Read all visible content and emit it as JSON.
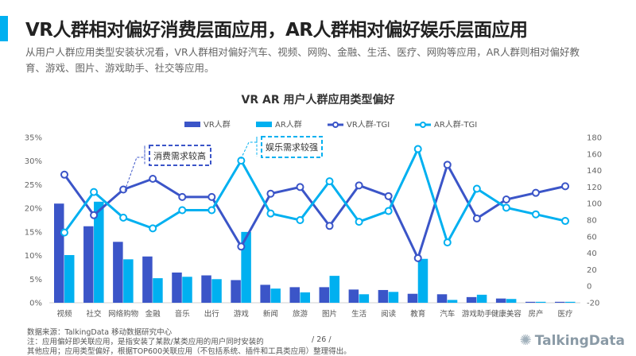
{
  "header": {
    "title": "VR人群相对偏好消费层面应用，AR人群相对偏好娱乐层面应用",
    "subtitle": "从用户人群应用类型安装状况看，VR人群相对偏好汽车、视频、网购、金融、生活、医疗、网购等应用，AR人群则相对偏好教育、游戏、图片、游戏助手、社交等应用。"
  },
  "colors": {
    "vr": "#3b55c8",
    "ar": "#00b0f0"
  },
  "chart_data": {
    "type": "bar+line",
    "title": "VR  AR  用户人群应用类型偏好",
    "categories": [
      "视频",
      "社交",
      "网络购物",
      "金融",
      "音乐",
      "出行",
      "游戏",
      "新闻",
      "旅游",
      "图片",
      "生活",
      "阅读",
      "教育",
      "汽车",
      "游戏助手",
      "健康美容",
      "房产",
      "医疗"
    ],
    "left_axis": {
      "ylim": [
        0,
        35
      ],
      "ticks": [
        "0%",
        "5%",
        "10%",
        "15%",
        "20%",
        "25%",
        "30%",
        "35%"
      ]
    },
    "right_axis": {
      "ylim": [
        -20,
        180
      ],
      "ticks": [
        "-20",
        "0",
        "20",
        "40",
        "60",
        "80",
        "100",
        "120",
        "140",
        "160",
        "180"
      ]
    },
    "legend_position": "top",
    "grid": false,
    "series": [
      {
        "name": "VR人群",
        "type": "bar",
        "axis": "left",
        "values": [
          21.0,
          16.2,
          12.9,
          9.8,
          6.4,
          5.8,
          4.8,
          3.8,
          3.3,
          3.3,
          2.8,
          2.7,
          1.9,
          1.8,
          1.2,
          0.9,
          0.2,
          0.2
        ]
      },
      {
        "name": "AR人群",
        "type": "bar",
        "axis": "left",
        "values": [
          10.1,
          21.4,
          9.2,
          5.2,
          5.5,
          5.0,
          15.0,
          3.0,
          2.2,
          5.7,
          1.8,
          2.3,
          9.3,
          0.6,
          1.7,
          0.8,
          0.2,
          0.2
        ]
      },
      {
        "name": "VR人群-TGI",
        "type": "line",
        "axis": "right",
        "values": [
          135,
          86,
          117,
          130,
          108,
          108,
          48,
          112,
          120,
          73,
          122,
          109,
          34,
          147,
          82,
          105,
          113,
          121
        ]
      },
      {
        "name": "AR人群-TGI",
        "type": "line",
        "axis": "right",
        "values": [
          65,
          114,
          83,
          70,
          92,
          92,
          152,
          88,
          80,
          127,
          78,
          91,
          166,
          53,
          118,
          95,
          87,
          79
        ]
      }
    ],
    "annotations": [
      "消费需求较高",
      "娱乐需求较强"
    ]
  },
  "footer": {
    "source": "数据来源：TalkingData 移动数据研究中心",
    "note1": "注：应用偏好即关联应用，是指安装了某款/某类应用的用户同时安装的",
    "note2": "其他应用；应用类型偏好，根据TOP600关联应用（不包括系统、插件和工具类应用）整理得出。",
    "page": "/ 26 /",
    "logo": "TalkingData"
  }
}
